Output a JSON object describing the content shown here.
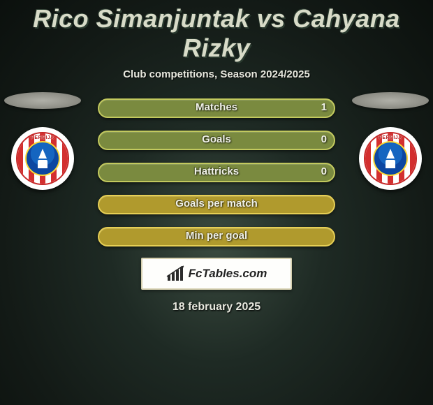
{
  "title": "Rico Simanjuntak vs Cahyana Rizky",
  "subtitle": "Club competitions, Season 2024/2025",
  "date_text": "18 february 2025",
  "brand_text": "FcTables.com",
  "club_arc_text": "PERSIJA",
  "colors": {
    "bar_fill_high": "#7a8a3f",
    "bar_border_high": "#c2c95e",
    "bar_fill_low": "#b09a2d",
    "bar_border_low": "#e6cf55",
    "title_color": "#d8dbc8",
    "subtitle_color": "#e8e9df",
    "label_color": "#f0f1e8",
    "logo_box_bg": "#fefefc",
    "logo_box_border": "#d6d0b0"
  },
  "stats": [
    {
      "label": "Matches",
      "right_value": "1",
      "variant": "high"
    },
    {
      "label": "Goals",
      "right_value": "0",
      "variant": "high"
    },
    {
      "label": "Hattricks",
      "right_value": "0",
      "variant": "high"
    },
    {
      "label": "Goals per match",
      "right_value": "",
      "variant": "low"
    },
    {
      "label": "Min per goal",
      "right_value": "",
      "variant": "low"
    }
  ]
}
